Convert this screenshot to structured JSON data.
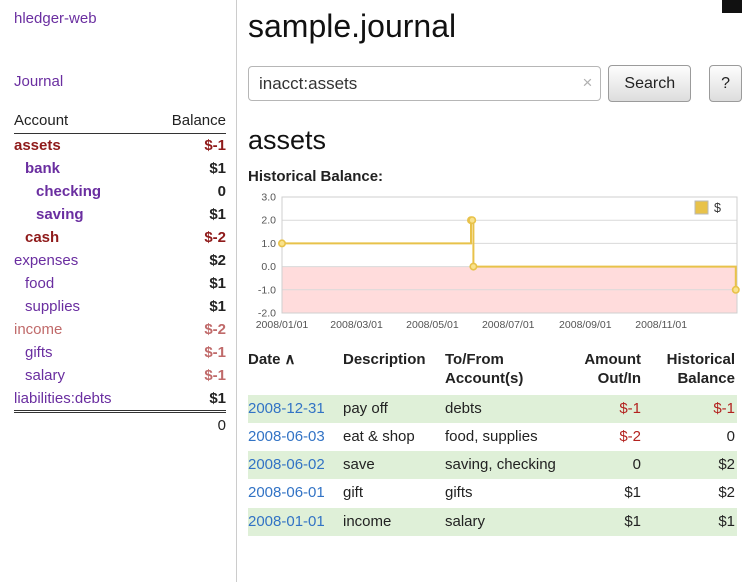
{
  "colors": {
    "purple": "#6a2ea0",
    "link_blue": "#3273c5",
    "neg_strong": "#8f1a1a",
    "neg_muted": "#c06a6a",
    "neg_table": "#b3221f",
    "row_green": "#dff0d8",
    "chart_line": "#e8c24a",
    "chart_marker_fill": "#f9e28c",
    "chart_neg_bg": "#ffdcdc"
  },
  "app": {
    "title": "hledger-web"
  },
  "sidebar": {
    "journal_link": "Journal",
    "table": {
      "account_header": "Account",
      "balance_header": "Balance",
      "rows": [
        {
          "label": "assets",
          "indent": 0,
          "bold": true,
          "label_class": "maroon",
          "balance": "$-1",
          "balance_class": "neg-strong"
        },
        {
          "label": "bank",
          "indent": 1,
          "bold": true,
          "label_class": "purple",
          "balance": "$1",
          "balance_class": ""
        },
        {
          "label": "checking",
          "indent": 2,
          "bold": true,
          "label_class": "purple",
          "balance": "0",
          "balance_class": ""
        },
        {
          "label": "saving",
          "indent": 2,
          "bold": true,
          "label_class": "purple",
          "balance": "$1",
          "balance_class": ""
        },
        {
          "label": "cash",
          "indent": 1,
          "bold": true,
          "label_class": "maroon",
          "balance": "$-2",
          "balance_class": "neg-strong"
        },
        {
          "label": "expenses",
          "indent": 0,
          "bold": false,
          "label_class": "purple",
          "balance": "$2",
          "balance_class": ""
        },
        {
          "label": "food",
          "indent": 1,
          "bold": false,
          "label_class": "purple",
          "balance": "$1",
          "balance_class": ""
        },
        {
          "label": "supplies",
          "indent": 1,
          "bold": false,
          "label_class": "purple",
          "balance": "$1",
          "balance_class": ""
        },
        {
          "label": "income",
          "indent": 0,
          "bold": false,
          "label_class": "pink",
          "balance": "$-2",
          "balance_class": "neg-muted"
        },
        {
          "label": "gifts",
          "indent": 1,
          "bold": false,
          "label_class": "purple",
          "balance": "$-1",
          "balance_class": "neg-muted"
        },
        {
          "label": "salary",
          "indent": 1,
          "bold": false,
          "label_class": "purple",
          "balance": "$-1",
          "balance_class": "neg-muted"
        },
        {
          "label": "liabilities:debts",
          "indent": 0,
          "bold": false,
          "label_class": "purple",
          "balance": "$1",
          "balance_class": ""
        }
      ],
      "total": "0"
    }
  },
  "main": {
    "title": "sample.journal",
    "search": {
      "value": "inacct:assets",
      "clear_icon": "×",
      "button": "Search",
      "help_button": "?"
    },
    "heading": "assets"
  },
  "chart_data": {
    "type": "line",
    "title": "Historical Balance:",
    "step": true,
    "legend": {
      "label": "$",
      "position": "top-right"
    },
    "x_range": [
      "2008-01-01",
      "2009-01-01"
    ],
    "ylim": [
      -2,
      3
    ],
    "y_ticks": [
      3.0,
      2.0,
      1.0,
      0.0,
      -1.0,
      -2.0
    ],
    "x_ticks": [
      "2008-01-01",
      "2008-03-01",
      "2008-05-01",
      "2008-07-01",
      "2008-09-01",
      "2008-11-01"
    ],
    "x_tick_labels": [
      "2008/01/01",
      "2008/03/01",
      "2008/05/01",
      "2008/07/01",
      "2008/09/01",
      "2008/11/01"
    ],
    "series": [
      {
        "name": "$",
        "points": [
          [
            "2008-01-01",
            1
          ],
          [
            "2008-06-01",
            2
          ],
          [
            "2008-06-02",
            2
          ],
          [
            "2008-06-03",
            0
          ],
          [
            "2008-12-31",
            -1
          ]
        ]
      }
    ]
  },
  "register": {
    "headers": {
      "date": "Date",
      "sort_indicator": "∧",
      "description": "Description",
      "tofrom_line1": "To/From",
      "tofrom_line2": "Account(s)",
      "amount_line1": "Amount",
      "amount_line2": "Out/In",
      "balance_line1": "Historical",
      "balance_line2": "Balance"
    },
    "rows": [
      {
        "date": "2008-12-31",
        "description": "pay off",
        "accounts": "debts",
        "amount": "$-1",
        "amount_neg": true,
        "balance": "$-1",
        "balance_neg": true,
        "shade": true
      },
      {
        "date": "2008-06-03",
        "description": "eat & shop",
        "accounts": "food, supplies",
        "amount": "$-2",
        "amount_neg": true,
        "balance": "0",
        "balance_neg": false,
        "shade": false
      },
      {
        "date": "2008-06-02",
        "description": "save",
        "accounts": "saving, checking",
        "amount": "0",
        "amount_neg": false,
        "balance": "$2",
        "balance_neg": false,
        "shade": true
      },
      {
        "date": "2008-06-01",
        "description": "gift",
        "accounts": "gifts",
        "amount": "$1",
        "amount_neg": false,
        "balance": "$2",
        "balance_neg": false,
        "shade": false
      },
      {
        "date": "2008-01-01",
        "description": "income",
        "accounts": "salary",
        "amount": "$1",
        "amount_neg": false,
        "balance": "$1",
        "balance_neg": false,
        "shade": true
      }
    ]
  }
}
